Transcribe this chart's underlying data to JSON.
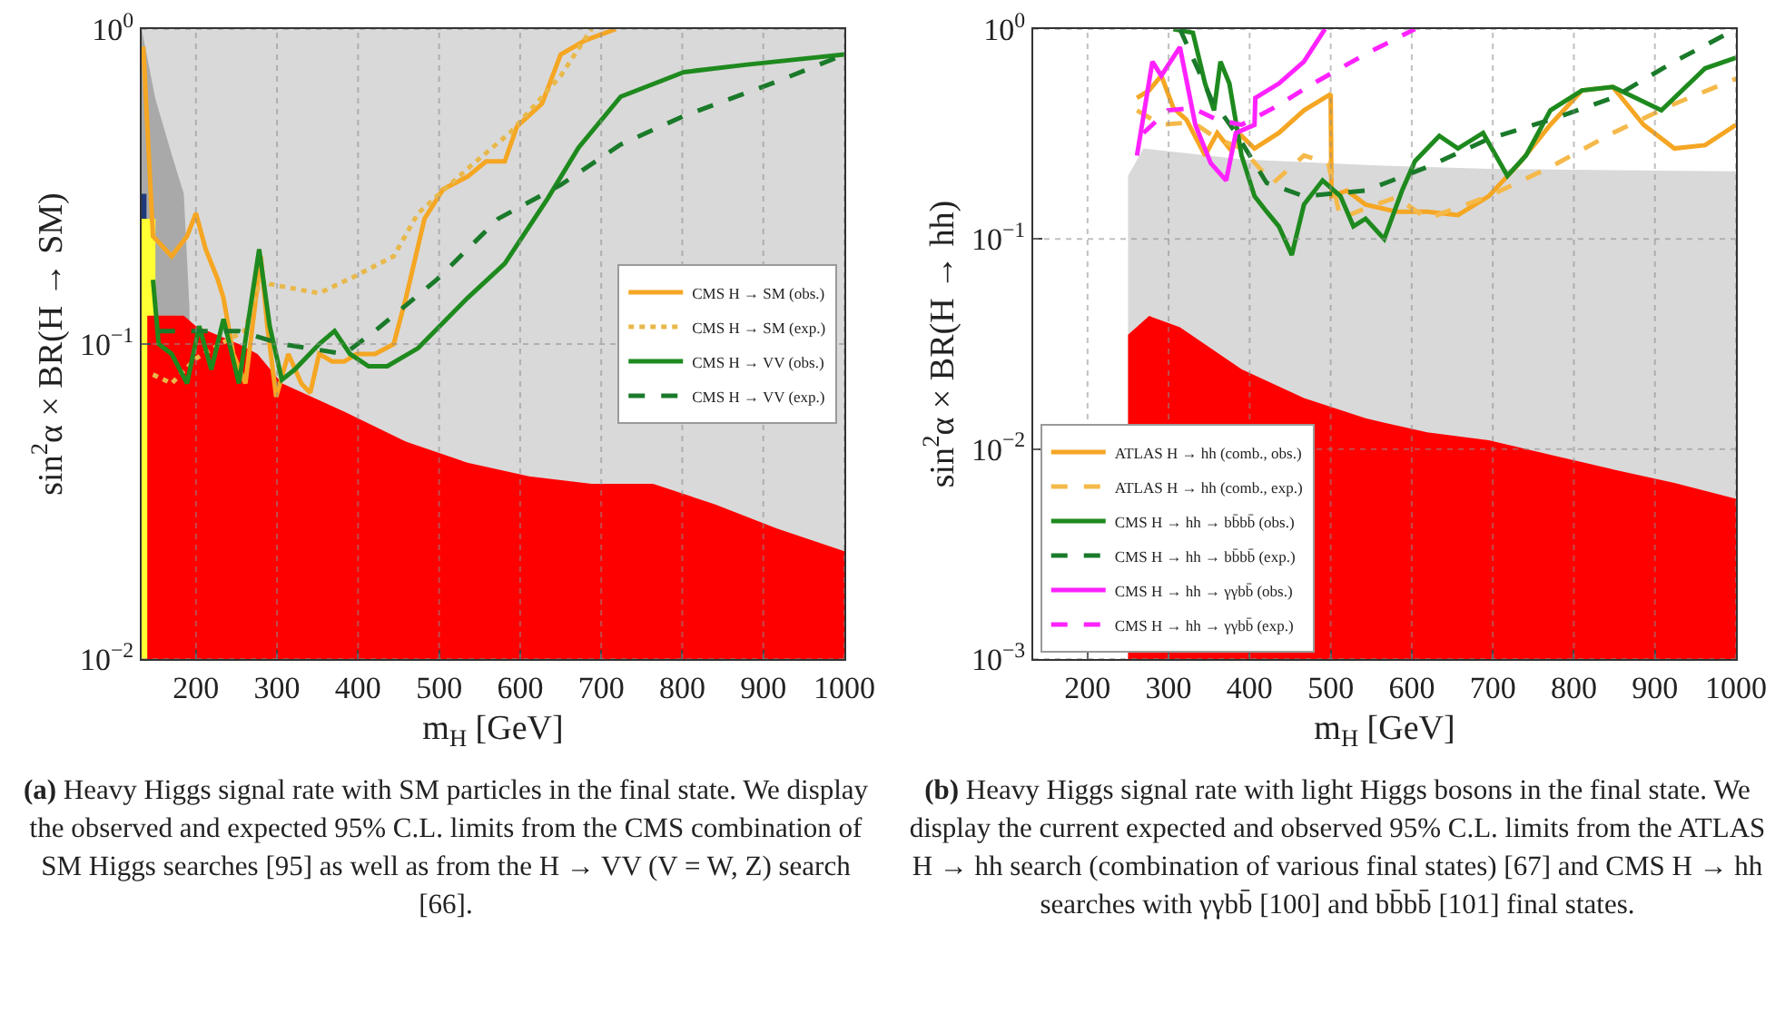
{
  "chart_data": [
    {
      "type": "line",
      "xlabel": "m$_{H}$ [GeV]",
      "ylabel": "sin$^{2}$α × BR(H → SM)",
      "log": "y",
      "grid": true,
      "legend": "right",
      "line_style": "solid",
      "marker": "none",
      "xlim": [
        133,
        1000
      ],
      "xticks": [
        200,
        300,
        400,
        500,
        600,
        700,
        800,
        900,
        1000
      ],
      "ylim": [
        0.01,
        1
      ],
      "yticks": [
        {
          "value": 0.01,
          "label": "10$^{−2}$"
        },
        {
          "value": 0.1,
          "label": "10$^{−1}$"
        },
        {
          "value": 1,
          "label": "10$^{0}$"
        }
      ],
      "annotations": [
        "(a) Heavy Higgs signal rate with SM particles in the final state. We display the observed and expected 95% C.L. limits from the CMS combination of SM Higgs searches [95] as well as from the H → VV (V = W, Z) search [66]."
      ],
      "series": [
        {
          "type": "area",
          "color": "#d9d9d9",
          "x": [
            133,
            1000
          ],
          "values": [
            1,
            1
          ]
        },
        {
          "type": "area",
          "color": "#a9a9a9",
          "x": [
            133,
            150,
            170,
            185,
            192
          ],
          "values": [
            1,
            0.6,
            0.4,
            0.3,
            0.13
          ]
        },
        {
          "type": "area",
          "color": "#1f3a7a",
          "x": [
            133,
            139
          ],
          "values": [
            0.3,
            0.3
          ]
        },
        {
          "type": "area",
          "color": "#ffff33",
          "x": [
            133,
            150
          ],
          "values": [
            0.25,
            0.25
          ]
        },
        {
          "type": "area",
          "color": "#ff0000",
          "x": [
            140,
            185,
            200,
            253,
            276,
            306,
            383,
            459,
            535,
            611,
            688,
            764,
            840,
            916,
            1000
          ],
          "values": [
            0.123,
            0.123,
            0.114,
            0.1,
            0.093,
            0.075,
            0.061,
            0.049,
            0.042,
            0.038,
            0.036,
            0.036,
            0.031,
            0.026,
            0.022
          ]
        },
        {
          "name": "CMS H → SM (obs.)",
          "color": "#f5a623",
          "x": [
            135,
            147,
            170,
            189,
            200,
            212,
            227,
            234,
            246,
            261,
            272,
            280,
            288,
            299,
            314,
            330,
            341,
            352,
            368,
            383,
            398,
            421,
            444,
            459,
            482,
            505,
            535,
            558,
            581,
            596,
            627,
            650,
            680,
            718
          ],
          "values": [
            0.88,
            0.22,
            0.19,
            0.22,
            0.26,
            0.2,
            0.16,
            0.14,
            0.093,
            0.075,
            0.127,
            0.19,
            0.114,
            0.068,
            0.093,
            0.075,
            0.07,
            0.093,
            0.088,
            0.088,
            0.093,
            0.093,
            0.1,
            0.14,
            0.25,
            0.31,
            0.34,
            0.38,
            0.38,
            0.49,
            0.58,
            0.83,
            0.92,
            1.0
          ]
        },
        {
          "name": "CMS H → SM (exp.)",
          "color": "#e8b84a",
          "line_style": "dotted",
          "x": [
            147,
            170,
            200,
            230,
            260,
            280,
            291,
            352,
            398,
            444,
            474,
            535,
            588,
            650,
            688
          ],
          "values": [
            0.08,
            0.075,
            0.09,
            0.1,
            0.11,
            0.16,
            0.155,
            0.145,
            0.165,
            0.19,
            0.26,
            0.36,
            0.47,
            0.71,
            1.0
          ]
        },
        {
          "name": "CMS H → VV (obs.)",
          "color": "#1e8a1e",
          "x": [
            147,
            154,
            170,
            189,
            204,
            219,
            234,
            253,
            278,
            291,
            306,
            322,
            352,
            371,
            390,
            413,
            436,
            474,
            535,
            581,
            634,
            672,
            724,
            802,
            878,
            1000
          ],
          "values": [
            0.16,
            0.1,
            0.093,
            0.075,
            0.114,
            0.083,
            0.12,
            0.075,
            0.2,
            0.114,
            0.077,
            0.083,
            0.1,
            0.11,
            0.093,
            0.085,
            0.085,
            0.097,
            0.14,
            0.18,
            0.29,
            0.42,
            0.61,
            0.73,
            0.77,
            0.83
          ]
        },
        {
          "name": "CMS H → VV (exp.)",
          "color": "#1a7a2a",
          "line_style": "dashed",
          "x": [
            154,
            253,
            306,
            383,
            421,
            497,
            573,
            650,
            724,
            802,
            916,
            1000
          ],
          "values": [
            0.11,
            0.11,
            0.1,
            0.093,
            0.11,
            0.16,
            0.25,
            0.32,
            0.43,
            0.53,
            0.68,
            0.83
          ]
        }
      ]
    },
    {
      "type": "line",
      "xlabel": "m$_{H}$ [GeV]",
      "ylabel": "sin$^{2}$α × BR(H → hh)",
      "log": "y",
      "grid": true,
      "legend": "bottom left",
      "line_style": "solid",
      "marker": "none",
      "xlim": [
        133,
        1000
      ],
      "xticks": [
        200,
        300,
        400,
        500,
        600,
        700,
        800,
        900,
        1000
      ],
      "ylim": [
        0.001,
        1
      ],
      "yticks": [
        {
          "value": 0.001,
          "label": "10$^{−3}$"
        },
        {
          "value": 0.01,
          "label": "10$^{−2}$"
        },
        {
          "value": 0.1,
          "label": "10$^{−1}$"
        },
        {
          "value": 1,
          "label": "10$^{0}$"
        }
      ],
      "annotations": [
        "(b) Heavy Higgs signal rate with light Higgs bosons in the final state. We display the current expected and observed 95% C.L. limits from the ATLAS H → hh search (combination of various final states) [67] and CMS H → hh searches with γγbb̄ [100] and bb̄bb̄ [101] final states."
      ],
      "series": [
        {
          "type": "area",
          "color": "#d9d9d9",
          "x": [
            250,
            269,
            390,
            543,
            695,
            1000
          ],
          "values": [
            0.2,
            0.27,
            0.24,
            0.225,
            0.216,
            0.21
          ]
        },
        {
          "type": "area",
          "color": "#ff0000",
          "x": [
            250,
            276,
            314,
            390,
            467,
            543,
            619,
            695,
            771,
            848,
            924,
            1000
          ],
          "values": [
            0.035,
            0.043,
            0.038,
            0.024,
            0.0175,
            0.014,
            0.012,
            0.011,
            0.0094,
            0.008,
            0.0069,
            0.0058
          ]
        },
        {
          "name": "ATLAS H → hh (comb., obs.)",
          "color": "#f5a623",
          "x": [
            261,
            276,
            291,
            306,
            322,
            345,
            360,
            375,
            390,
            406,
            436,
            467,
            500,
            501,
            520,
            543,
            581,
            619,
            657,
            695,
            733,
            771,
            810,
            848,
            886,
            924,
            962,
            1000
          ],
          "values": [
            0.47,
            0.51,
            0.6,
            0.42,
            0.37,
            0.25,
            0.32,
            0.27,
            0.31,
            0.27,
            0.32,
            0.41,
            0.49,
            0.16,
            0.17,
            0.146,
            0.135,
            0.135,
            0.13,
            0.16,
            0.23,
            0.35,
            0.51,
            0.53,
            0.35,
            0.27,
            0.28,
            0.35
          ]
        },
        {
          "name": "ATLAS H → hh (comb., exp.)",
          "color": "#f5b94a",
          "line_style": "dashed",
          "x": [
            261,
            291,
            330,
            360,
            390,
            429,
            467,
            497,
            512,
            543,
            581,
            619,
            695,
            771,
            848,
            924,
            1000
          ],
          "values": [
            0.41,
            0.35,
            0.36,
            0.3,
            0.27,
            0.185,
            0.25,
            0.23,
            0.125,
            0.14,
            0.158,
            0.125,
            0.16,
            0.22,
            0.32,
            0.44,
            0.58
          ]
        },
        {
          "name": "CMS H → hh → bb̄bb̄ (obs.)",
          "color": "#1e8a1e",
          "x": [
            306,
            330,
            345,
            356,
            364,
            375,
            390,
            406,
            421,
            436,
            452,
            467,
            490,
            512,
            528,
            543,
            566,
            588,
            604,
            634,
            657,
            688,
            718,
            741,
            771,
            810,
            848,
            908,
            962,
            1000
          ],
          "values": [
            1.0,
            0.96,
            0.55,
            0.41,
            0.7,
            0.55,
            0.25,
            0.16,
            0.135,
            0.115,
            0.084,
            0.146,
            0.19,
            0.16,
            0.115,
            0.125,
            0.1,
            0.17,
            0.235,
            0.31,
            0.27,
            0.32,
            0.2,
            0.25,
            0.41,
            0.51,
            0.53,
            0.41,
            0.65,
            0.73
          ]
        },
        {
          "name": "CMS H → hh → bb̄bb̄ (exp.)",
          "color": "#1a7a2a",
          "line_style": "dashed",
          "x": [
            314,
            352,
            383,
            421,
            467,
            543,
            619,
            695,
            771,
            848,
            924,
            1000
          ],
          "values": [
            1.0,
            0.47,
            0.32,
            0.185,
            0.16,
            0.17,
            0.22,
            0.3,
            0.37,
            0.47,
            0.7,
            1.0
          ]
        },
        {
          "name": "CMS H → hh → γγbb̄ (obs.)",
          "color": "#ff22ff",
          "x": [
            261,
            280,
            291,
            314,
            333,
            352,
            371,
            383,
            406,
            407,
            436,
            467,
            493
          ],
          "values": [
            0.25,
            0.7,
            0.6,
            0.82,
            0.35,
            0.23,
            0.19,
            0.32,
            0.35,
            0.47,
            0.55,
            0.7,
            1.0
          ]
        },
        {
          "name": "CMS H → hh → γγbb̄ (exp.)",
          "color": "#ff22ff",
          "line_style": "dashed",
          "x": [
            269,
            299,
            330,
            360,
            390,
            429,
            482,
            543,
            604
          ],
          "values": [
            0.32,
            0.41,
            0.42,
            0.37,
            0.35,
            0.42,
            0.56,
            0.76,
            1.0
          ]
        }
      ]
    }
  ]
}
